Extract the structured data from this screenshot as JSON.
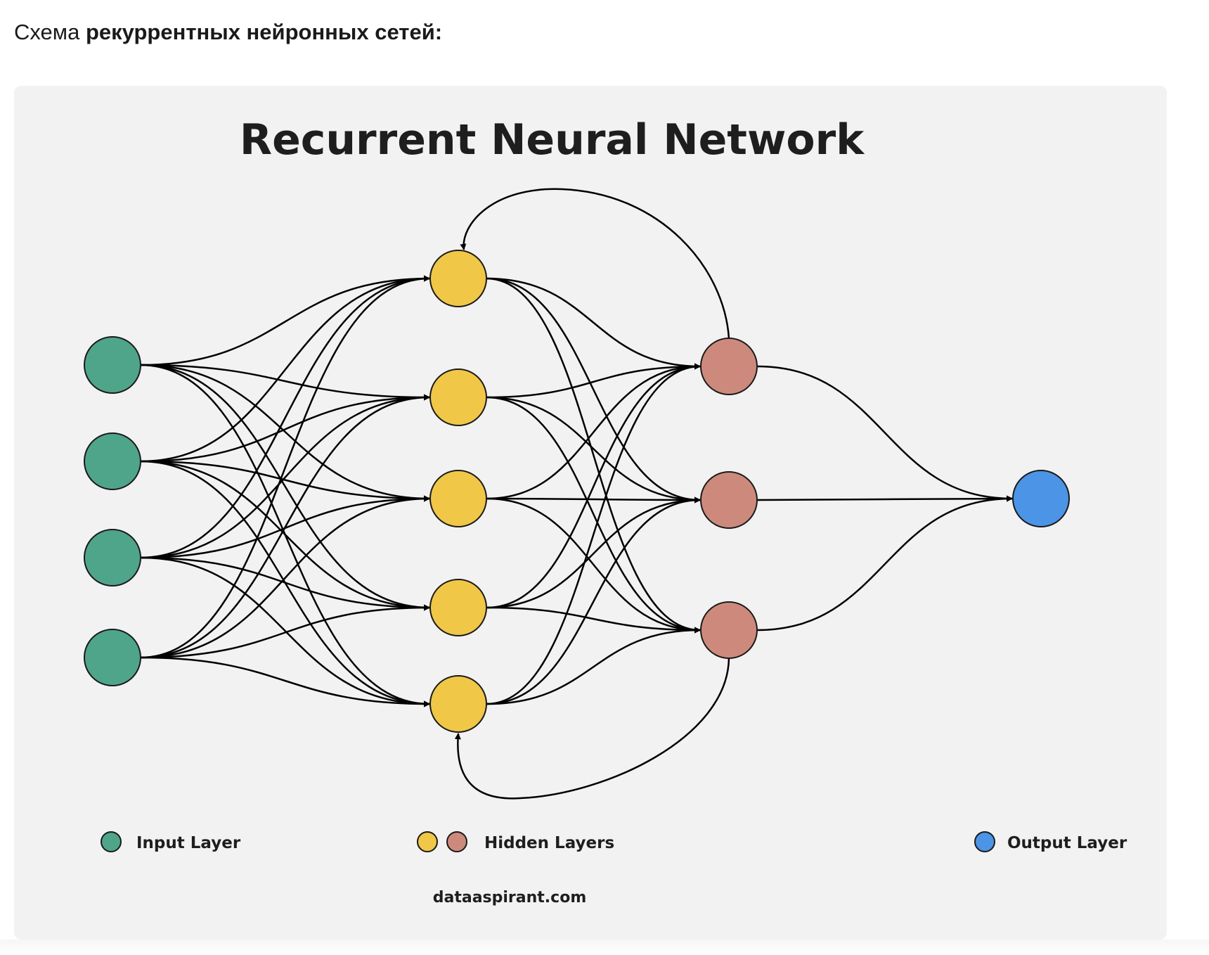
{
  "heading": {
    "prefix": "Схема ",
    "emphasis": "рекуррентных нейронных сетей:"
  },
  "diagram": {
    "title": "Recurrent Neural Network",
    "legend": {
      "input": "Input Layer",
      "hidden": "Hidden Layers",
      "output": "Output Layer"
    },
    "source": "dataaspirant.com",
    "colors": {
      "input": "#4fa58a",
      "hidden1": "#f0c747",
      "hidden2": "#cd8a7c",
      "output": "#4c94e6",
      "edge": "#000000"
    },
    "layers": [
      {
        "name": "input",
        "count": 4
      },
      {
        "name": "hidden-1",
        "count": 5
      },
      {
        "name": "hidden-2",
        "count": 3
      },
      {
        "name": "output",
        "count": 1
      }
    ],
    "recurrent_loops": [
      {
        "from": "hidden-2 node 1",
        "to": "hidden-1 node 1"
      },
      {
        "from": "hidden-2 node 3",
        "to": "hidden-1 node 5"
      }
    ]
  }
}
